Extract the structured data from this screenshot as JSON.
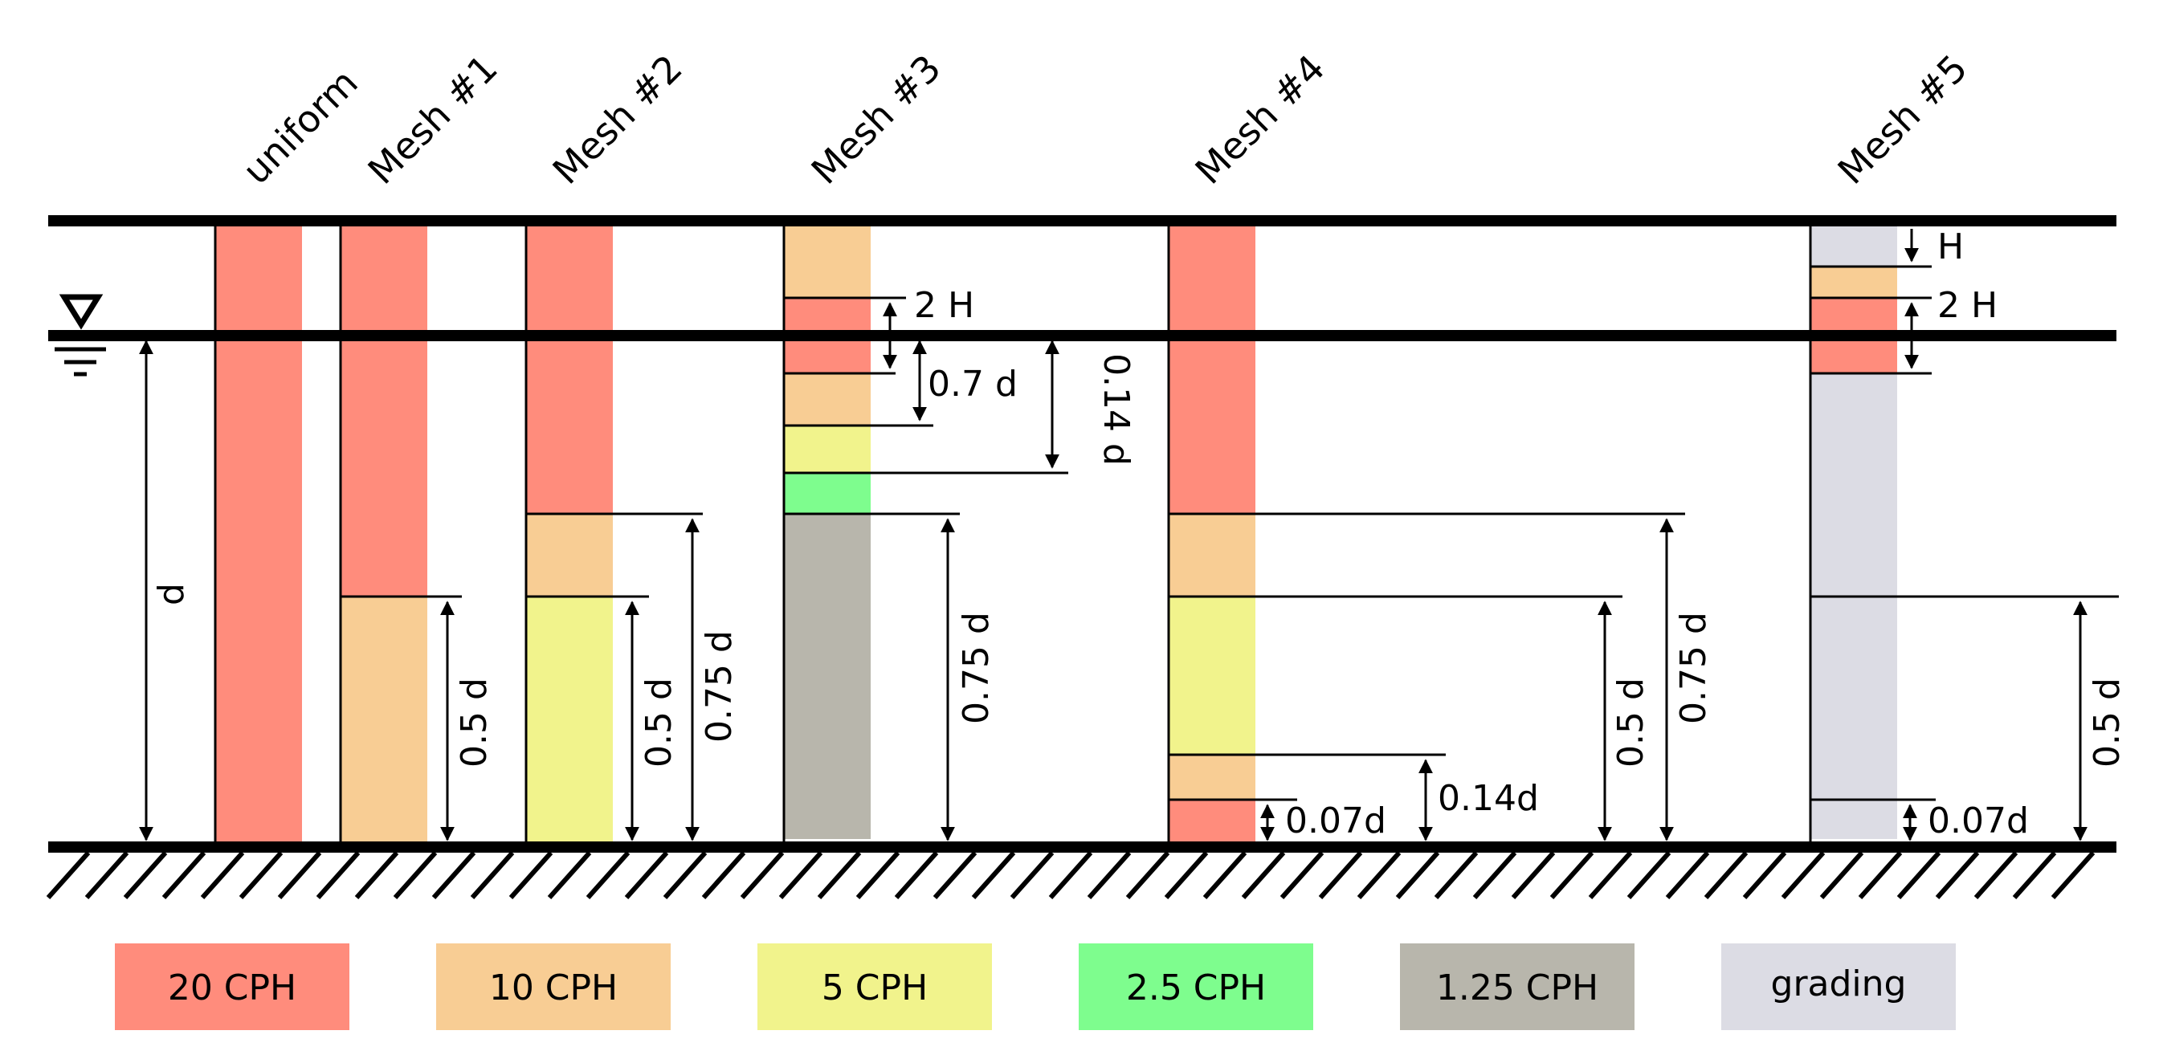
{
  "mesh_titles": {
    "uniform": "uniform",
    "mesh1": "Mesh #1",
    "mesh2": "Mesh #2",
    "mesh3": "Mesh #3",
    "mesh4": "Mesh #4",
    "mesh5": "Mesh #5"
  },
  "depth_label": "d",
  "dims": {
    "m1_half": "0.5 d",
    "m2_half": "0.5 d",
    "m2_three_quarter": "0.75 d",
    "m3_two_h": "2 H",
    "m3_zero_seven": "0.7 d",
    "m3_zero_fourteen": "0.14 d",
    "m3_three_quarter": "0.75 d",
    "m4_half": "0.5 d",
    "m4_three_quarter": "0.75 d",
    "m4_zero_fourteen": "0.14d",
    "m4_zero_zero_seven": "0.07d",
    "m5_h": "H",
    "m5_two_h": "2 H",
    "m5_half": "0.5 d",
    "m5_zero_zero_seven": "0.07d"
  },
  "legend": [
    {
      "label": "20 CPH",
      "color": "#ff8c7c"
    },
    {
      "label": "10 CPH",
      "color": "#f8cd94"
    },
    {
      "label": "5 CPH",
      "color": "#f1f38c"
    },
    {
      "label": "2.5 CPH",
      "color": "#7efd8e"
    },
    {
      "label": "1.25 CPH",
      "color": "#b8b6ac"
    },
    {
      "label": "grading",
      "color": "#dcdce4"
    }
  ]
}
